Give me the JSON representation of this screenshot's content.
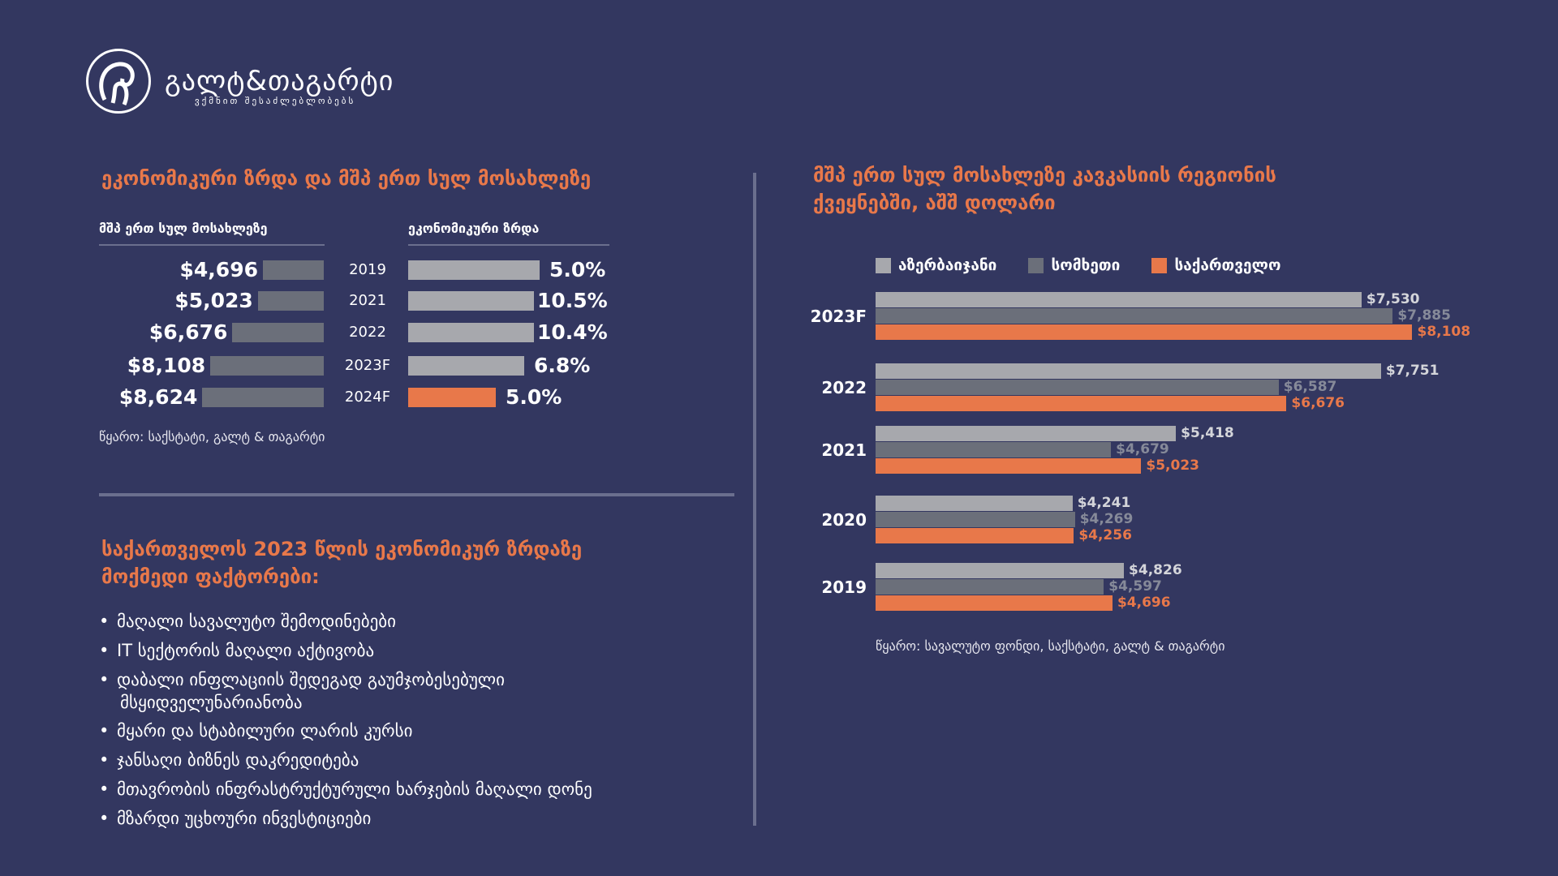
{
  "brand": {
    "name": "გალტ&თაგარტი",
    "tagline": "ვქმნით შესაძლებლობებს"
  },
  "left": {
    "title": "ეკონომიკური ზრდა და მშპ ერთ სულ მოსახლეზე",
    "col_gdp": "მშპ ერთ სულ მოსახლეზე",
    "col_growth": "ეკონომიკური ზრდა",
    "source": "წყარო: საქსტატი, გალტ & თაგარტი"
  },
  "factors": {
    "title_line1": "საქართველოს 2023 წლის ეკონომიკურ ზრდაზე",
    "title_line2": "მოქმედი ფაქტორები:",
    "items": [
      "მაღალი სავალუტო შემოდინებები",
      "IT სექტორის მაღალი აქტივობა",
      "დაბალი ინფლაციის შედეგად გაუმჯობესებული",
      "მსყიდველუნარიანობა",
      "მყარი და სტაბილური ლარის კურსი",
      "ჯანსაღი ბიზნეს დაკრედიტება",
      "მთავრობის ინფრასტრუქტურული ხარჯების მაღალი დონე",
      "მზარდი უცხოური ინვესტიციები"
    ]
  },
  "right": {
    "title_line1": "მშპ ერთ სულ მოსახლეზე კავკასიის რეგიონის",
    "title_line2": "ქვეყნებში, აშშ დოლარი",
    "source": "წყარო: სავალუტო ფონდი, საქსტატი, გალტ & თაგარტი"
  },
  "chart_data": [
    {
      "type": "bar",
      "orientation": "horizontal",
      "categories": [
        "2019",
        "2021",
        "2022",
        "2023F",
        "2024F"
      ],
      "series": [
        {
          "name": "მშპ ერთ სულ მოსახლეზე",
          "values": [
            4696,
            5023,
            6676,
            8108,
            8624
          ],
          "labels": [
            "$4,696",
            "$5,023",
            "$6,676",
            "$8,108",
            "$8,624"
          ],
          "color": "#6b6f7a"
        },
        {
          "name": "ეკონომიკური ზრდა",
          "values": [
            5.0,
            10.5,
            10.4,
            6.8,
            5.0
          ],
          "labels": [
            "5.0%",
            "10.5%",
            "10.4%",
            "6.8%",
            "5.0%"
          ],
          "colors": [
            "#a7a8ad",
            "#a7a8ad",
            "#a7a8ad",
            "#a7a8ad",
            "#e8784a"
          ]
        }
      ]
    },
    {
      "type": "bar",
      "orientation": "horizontal",
      "categories": [
        "2023F",
        "2022",
        "2021",
        "2020",
        "2019"
      ],
      "legend_position": "top",
      "series": [
        {
          "name": "აზერბაიჯანი",
          "color": "#a7a8ad",
          "label_color": "#d4d5da",
          "values": [
            7530,
            7751,
            5418,
            4241,
            4826
          ],
          "labels": [
            "$7,530",
            "$7,751",
            "$5,418",
            "$4,241",
            "$4,826"
          ]
        },
        {
          "name": "სომხეთი",
          "color": "#6b6f7a",
          "label_color": "#868a99",
          "values": [
            7885,
            6587,
            4679,
            4269,
            4597
          ],
          "labels": [
            "$7,885",
            "$6,587",
            "$4,679",
            "$4,269",
            "$4,597"
          ]
        },
        {
          "name": "საქართველო",
          "color": "#e8784a",
          "label_color": "#e8784a",
          "values": [
            8108,
            6676,
            5023,
            4256,
            4696
          ],
          "labels": [
            "$8,108",
            "$6,676",
            "$5,023",
            "$4,256",
            "$4,696"
          ]
        }
      ]
    }
  ]
}
